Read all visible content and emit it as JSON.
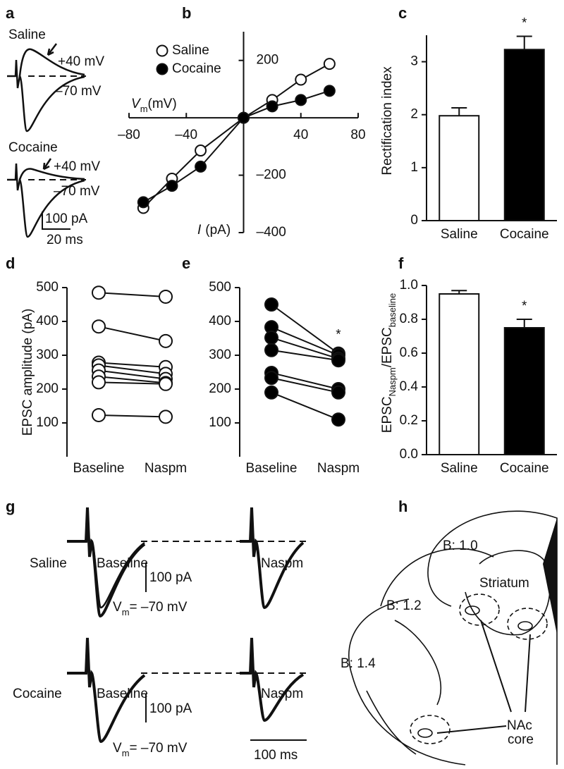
{
  "panel_letters": [
    "a",
    "b",
    "c",
    "d",
    "e",
    "f",
    "g",
    "h"
  ],
  "panel_a": {
    "saline": "Saline",
    "saline_pos": "+40 mV",
    "saline_neg": "–70 mV",
    "cocaine": "Cocaine",
    "cocaine_pos": "+40 mV",
    "cocaine_neg": "–70 mV",
    "scale_current": "100 pA",
    "scale_time": "20 ms"
  },
  "panel_g": {
    "saline": "Saline",
    "baseline_1": "Baseline",
    "naspm_1": "Naspm",
    "scale_current_1": "100 pA",
    "vm_1": [
      "V",
      "m",
      "= –70 mV"
    ],
    "cocaine": "Cocaine",
    "baseline_2": "Baseline",
    "naspm_2": "Naspm",
    "scale_current_2": "100 pA",
    "vm_2": [
      "V",
      "m",
      "= –70 mV"
    ],
    "scale_time": "100 ms"
  },
  "panel_h": {
    "levels": [
      "B: 1.0",
      "B: 1.2",
      "B: 1.4"
    ],
    "striatum": "Striatum",
    "nac": [
      "NAc",
      "core"
    ]
  },
  "chart_data": [
    {
      "type": "line",
      "x": [
        -70,
        -50,
        -30,
        0,
        20,
        40,
        60
      ],
      "series": [
        {
          "name": "Saline",
          "color": "#ffffff",
          "values": [
            -314,
            -212,
            -114,
            0,
            62,
            133,
            188
          ]
        },
        {
          "name": "Cocaine",
          "color": "#000000",
          "values": [
            -294,
            -237,
            -170,
            0,
            40,
            62,
            94
          ]
        }
      ],
      "xlim": [
        -80,
        80
      ],
      "xticks": [
        {
          "value": -80,
          "label": "–80"
        },
        {
          "value": -40,
          "label": "–40"
        },
        40,
        80
      ],
      "ylim": [
        -400,
        300
      ],
      "yticks": [
        200,
        {
          "value": -200,
          "label": "–200"
        },
        {
          "value": -400,
          "label": "–400"
        }
      ],
      "xlabel_parts": [
        "V",
        "m",
        "(mV)"
      ],
      "ylabel_parts": [
        "I",
        "(pA)"
      ]
    },
    {
      "type": "bar",
      "categories": [
        "Saline",
        "Cocaine"
      ],
      "values": [
        1.98,
        3.23
      ],
      "errors": [
        0.15,
        0.25
      ],
      "colors": [
        "#ffffff",
        "#000000"
      ],
      "ylim": [
        0,
        3.5
      ],
      "yticks": [
        0,
        1,
        2,
        3
      ],
      "ylabel_parts": [
        "Rectification index"
      ],
      "annotation": "*"
    },
    {
      "type": "paired",
      "categories": [
        "Baseline",
        "Naspm"
      ],
      "values": [
        [
          485,
          473
        ],
        [
          385,
          342
        ],
        [
          278,
          265
        ],
        [
          270,
          245
        ],
        [
          255,
          230
        ],
        [
          237,
          218
        ],
        [
          220,
          215
        ],
        [
          123,
          118
        ]
      ],
      "color": "#ffffff",
      "ylim": [
        0,
        500
      ],
      "yticks": [
        100,
        200,
        300,
        400,
        500
      ],
      "ylabel_parts": [
        "EPSC amplitude (pA)"
      ]
    },
    {
      "type": "paired",
      "categories": [
        "Baseline",
        "Naspm"
      ],
      "values": [
        [
          450,
          305
        ],
        [
          383,
          300
        ],
        [
          352,
          290
        ],
        [
          315,
          285
        ],
        [
          248,
          200
        ],
        [
          233,
          190
        ],
        [
          190,
          110
        ]
      ],
      "color": "#000000",
      "ylim": [
        0,
        500
      ],
      "yticks": [
        100,
        200,
        300,
        400,
        500
      ],
      "annotation": "*"
    },
    {
      "type": "bar",
      "categories": [
        "Saline",
        "Cocaine"
      ],
      "values": [
        0.95,
        0.75
      ],
      "errors": [
        0.02,
        0.05
      ],
      "colors": [
        "#ffffff",
        "#000000"
      ],
      "ylim": [
        0,
        1.0
      ],
      "yticks": [
        {
          "value": 0,
          "label": "0.0"
        },
        0.2,
        0.4,
        0.6,
        0.8,
        {
          "value": 1,
          "label": "1.0"
        }
      ],
      "ylabel_parts": [
        "EPSC",
        "Naspm",
        "/EPSC",
        "baseline"
      ],
      "annotation": "*"
    }
  ]
}
